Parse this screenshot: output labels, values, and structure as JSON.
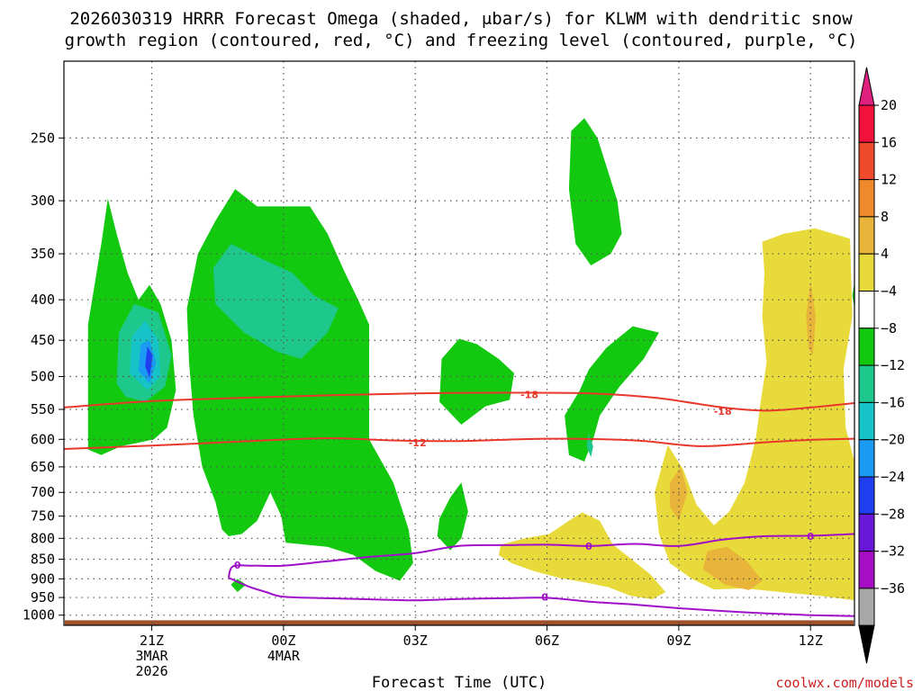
{
  "colors": {
    "red_contour": "#e8382c",
    "purple_contour": "#a010c8",
    "ground": "#a0522d",
    "credit": "#cc1f1f"
  },
  "chart_data": {
    "type": "heatmap",
    "title_line1": "2026030319 HRRR Forecast Omega (shaded, μbar/s) for KLWM with dendritic snow",
    "title_line2": "growth region (contoured, red, °C) and freezing level (contoured, purple, °C)",
    "xlabel": "Forecast Time (UTC)",
    "ylabel": "",
    "y_scale": "log-pressure (hPa), decreasing upward",
    "y_ticks": [
      250,
      300,
      350,
      400,
      450,
      500,
      550,
      600,
      650,
      700,
      750,
      800,
      850,
      900,
      950,
      1000
    ],
    "x_ticks": [
      {
        "hour": 21,
        "line1": "21Z",
        "line2": "3MAR",
        "line3": "2026"
      },
      {
        "hour": 24,
        "line1": "00Z",
        "line2": "4MAR",
        "line3": ""
      },
      {
        "hour": 27,
        "line1": "03Z",
        "line2": "",
        "line3": ""
      },
      {
        "hour": 30,
        "line1": "06Z",
        "line2": "",
        "line3": ""
      },
      {
        "hour": 33,
        "line1": "09Z",
        "line2": "",
        "line3": ""
      },
      {
        "hour": 36,
        "line1": "12Z",
        "line2": "",
        "line3": ""
      }
    ],
    "x_range_hours": [
      19,
      37
    ],
    "y_range_hpa": [
      200,
      1030
    ],
    "grid": true,
    "colorbar": {
      "labels": [
        "20",
        "16",
        "12",
        "8",
        "4",
        "−4",
        "−8",
        "−12",
        "−16",
        "−20",
        "−24",
        "−28",
        "−32",
        "−36"
      ],
      "colors": [
        "#f0123c",
        "#f04a2c",
        "#ee8a2c",
        "#e9b43a",
        "#e8da3a",
        "#ffffff",
        "#12c90f",
        "#1ec88c",
        "#16c4c8",
        "#1a9af2",
        "#1e3ef0",
        "#6a18d8",
        "#a60ec4",
        "#a8a8a8"
      ],
      "top_arrow_color": "#e0207e",
      "bottom_arrow_color": "#000000"
    },
    "omega_regions": [
      {
        "level": "-4",
        "color": "#12c90f",
        "points": [
          [
            19.55,
            618
          ],
          [
            19.55,
            430
          ],
          [
            19.85,
            340
          ],
          [
            20.0,
            298
          ],
          [
            20.2,
            330
          ],
          [
            20.45,
            370
          ],
          [
            20.7,
            400
          ],
          [
            20.95,
            383
          ],
          [
            21.2,
            405
          ],
          [
            21.45,
            450
          ],
          [
            21.55,
            520
          ],
          [
            21.35,
            580
          ],
          [
            21.05,
            600
          ],
          [
            20.75,
            605
          ],
          [
            20.3,
            612
          ],
          [
            19.85,
            628
          ]
        ]
      },
      {
        "level": "-4",
        "color": "#12c90f",
        "points": [
          [
            21.95,
            560
          ],
          [
            21.85,
            480
          ],
          [
            21.8,
            410
          ],
          [
            22.05,
            350
          ],
          [
            22.45,
            318
          ],
          [
            22.9,
            290
          ],
          [
            23.4,
            305
          ],
          [
            24.6,
            305
          ],
          [
            25.0,
            330
          ],
          [
            25.4,
            370
          ],
          [
            25.7,
            400
          ],
          [
            25.95,
            430
          ],
          [
            25.95,
            600
          ],
          [
            26.5,
            680
          ],
          [
            26.85,
            780
          ],
          [
            26.95,
            860
          ],
          [
            26.65,
            905
          ],
          [
            26.1,
            880
          ],
          [
            25.6,
            840
          ],
          [
            25.0,
            820
          ],
          [
            24.5,
            815
          ],
          [
            24.05,
            810
          ],
          [
            23.95,
            750
          ],
          [
            23.7,
            700
          ],
          [
            23.4,
            760
          ],
          [
            23.05,
            790
          ],
          [
            22.75,
            795
          ],
          [
            22.6,
            780
          ],
          [
            22.45,
            720
          ],
          [
            22.15,
            650
          ]
        ]
      },
      {
        "level": "-4",
        "color": "#12c90f",
        "points": [
          [
            27.55,
            538
          ],
          [
            27.6,
            475
          ],
          [
            28.0,
            448
          ],
          [
            28.4,
            455
          ],
          [
            28.9,
            475
          ],
          [
            29.25,
            495
          ],
          [
            29.15,
            535
          ],
          [
            28.6,
            545
          ],
          [
            28.05,
            575
          ]
        ]
      },
      {
        "level": "-4",
        "color": "#12c90f",
        "points": [
          [
            27.5,
            795
          ],
          [
            27.55,
            755
          ],
          [
            27.8,
            710
          ],
          [
            28.05,
            680
          ],
          [
            28.2,
            740
          ],
          [
            28.05,
            800
          ],
          [
            27.8,
            828
          ]
        ]
      },
      {
        "level": "-4",
        "color": "#12c90f",
        "points": [
          [
            30.5,
            290
          ],
          [
            30.55,
            245
          ],
          [
            30.85,
            236
          ],
          [
            31.15,
            250
          ],
          [
            31.6,
            300
          ],
          [
            31.7,
            330
          ],
          [
            31.45,
            350
          ],
          [
            31.0,
            362
          ],
          [
            30.65,
            340
          ]
        ]
      },
      {
        "level": "-4",
        "color": "#12c90f",
        "points": [
          [
            30.5,
            628
          ],
          [
            30.4,
            560
          ],
          [
            30.75,
            520
          ],
          [
            30.95,
            490
          ],
          [
            31.35,
            460
          ],
          [
            31.95,
            432
          ],
          [
            32.55,
            440
          ],
          [
            32.2,
            475
          ],
          [
            31.65,
            515
          ],
          [
            31.2,
            560
          ],
          [
            31.05,
            600
          ],
          [
            30.85,
            640
          ]
        ]
      },
      {
        "level": "-4",
        "color": "#12c90f",
        "points": [
          [
            22.8,
            915
          ],
          [
            22.95,
            900
          ],
          [
            23.15,
            915
          ],
          [
            22.95,
            935
          ]
        ]
      },
      {
        "level": "-8",
        "color": "#1ec88c",
        "points": [
          [
            22.4,
            365
          ],
          [
            22.8,
            340
          ],
          [
            23.5,
            355
          ],
          [
            24.2,
            370
          ],
          [
            24.7,
            395
          ],
          [
            25.25,
            410
          ],
          [
            25.0,
            440
          ],
          [
            24.4,
            475
          ],
          [
            23.85,
            465
          ],
          [
            23.1,
            440
          ],
          [
            22.45,
            405
          ]
        ]
      },
      {
        "level": "-8",
        "color": "#1ec88c",
        "points": [
          [
            20.2,
            510
          ],
          [
            20.25,
            440
          ],
          [
            20.6,
            405
          ],
          [
            21.15,
            415
          ],
          [
            21.45,
            470
          ],
          [
            21.3,
            515
          ],
          [
            20.85,
            538
          ],
          [
            20.4,
            530
          ]
        ]
      },
      {
        "level": "-8",
        "color": "#1ec88c",
        "points": [
          [
            30.9,
            612
          ],
          [
            30.95,
            590
          ],
          [
            31.05,
            612
          ],
          [
            31.0,
            632
          ]
        ]
      },
      {
        "level": "-12",
        "color": "#16c4c8",
        "points": [
          [
            20.5,
            495
          ],
          [
            20.55,
            445
          ],
          [
            20.85,
            425
          ],
          [
            21.15,
            450
          ],
          [
            21.2,
            500
          ],
          [
            20.9,
            520
          ]
        ]
      },
      {
        "level": "-16",
        "color": "#1a9af2",
        "points": [
          [
            20.7,
            492
          ],
          [
            20.75,
            455
          ],
          [
            20.95,
            450
          ],
          [
            21.1,
            480
          ],
          [
            20.95,
            510
          ]
        ]
      },
      {
        "level": "-20",
        "color": "#1e3ef0",
        "points": [
          [
            20.85,
            485
          ],
          [
            20.9,
            458
          ],
          [
            21.02,
            470
          ],
          [
            20.95,
            502
          ]
        ]
      },
      {
        "level": "4",
        "color": "#e8da3a",
        "points": [
          [
            35.0,
            480
          ],
          [
            34.9,
            420
          ],
          [
            34.95,
            370
          ],
          [
            34.9,
            338
          ],
          [
            35.4,
            330
          ],
          [
            36.1,
            325
          ],
          [
            36.9,
            335
          ],
          [
            36.95,
            420
          ],
          [
            36.75,
            490
          ],
          [
            36.8,
            580
          ],
          [
            37.0,
            640
          ],
          [
            37.0,
            958
          ],
          [
            36.2,
            945
          ],
          [
            35.3,
            935
          ],
          [
            34.5,
            925
          ],
          [
            33.8,
            928
          ],
          [
            33.3,
            900
          ],
          [
            32.8,
            860
          ],
          [
            32.55,
            790
          ],
          [
            32.45,
            700
          ],
          [
            32.75,
            610
          ],
          [
            33.1,
            655
          ],
          [
            33.4,
            725
          ],
          [
            33.8,
            770
          ],
          [
            34.15,
            740
          ],
          [
            34.5,
            680
          ],
          [
            34.75,
            600
          ],
          [
            34.85,
            545
          ]
        ]
      },
      {
        "level": "4",
        "color": "#e8da3a",
        "points": [
          [
            28.9,
            840
          ],
          [
            28.95,
            815
          ],
          [
            29.5,
            800
          ],
          [
            30.05,
            790
          ],
          [
            30.5,
            760
          ],
          [
            30.8,
            742
          ],
          [
            31.2,
            760
          ],
          [
            31.5,
            815
          ],
          [
            31.9,
            848
          ],
          [
            32.35,
            888
          ],
          [
            32.7,
            935
          ],
          [
            32.4,
            955
          ],
          [
            31.9,
            945
          ],
          [
            31.4,
            922
          ],
          [
            30.9,
            910
          ],
          [
            30.3,
            898
          ],
          [
            29.7,
            880
          ],
          [
            29.2,
            860
          ]
        ]
      },
      {
        "level": "8",
        "color": "#e9b43a",
        "points": [
          [
            33.55,
            875
          ],
          [
            33.65,
            830
          ],
          [
            34.1,
            820
          ],
          [
            34.55,
            855
          ],
          [
            34.9,
            905
          ],
          [
            34.6,
            930
          ],
          [
            34.05,
            915
          ]
        ]
      },
      {
        "level": "8",
        "color": "#e9b43a",
        "points": [
          [
            32.8,
            730
          ],
          [
            32.8,
            680
          ],
          [
            33.05,
            650
          ],
          [
            33.2,
            700
          ],
          [
            33.0,
            760
          ]
        ]
      },
      {
        "level": "8",
        "color": "#e9b43a",
        "points": [
          [
            35.95,
            460
          ],
          [
            35.9,
            420
          ],
          [
            36.0,
            380
          ],
          [
            36.12,
            420
          ],
          [
            36.05,
            470
          ]
        ]
      },
      {
        "level": "-4",
        "color": "#12c90f",
        "points": [
          [
            36.95,
            395
          ],
          [
            37.0,
            380
          ],
          [
            37.0,
            410
          ]
        ]
      }
    ],
    "contours": [
      {
        "name": "-18",
        "color": "#e8382c",
        "label": "-18",
        "label_at": [
          [
            29.6,
            527
          ],
          [
            34.0,
            553
          ]
        ],
        "points": [
          [
            19.0,
            547
          ],
          [
            21.0,
            537
          ],
          [
            23.0,
            532
          ],
          [
            25.0,
            528
          ],
          [
            27.0,
            525
          ],
          [
            29.0,
            524
          ],
          [
            31.0,
            525
          ],
          [
            32.5,
            532
          ],
          [
            34.0,
            547
          ],
          [
            35.0,
            552
          ],
          [
            36.0,
            547
          ],
          [
            37.0,
            540
          ]
        ]
      },
      {
        "name": "-12",
        "color": "#e8382c",
        "label": "-12",
        "label_at": [
          [
            27.05,
            606
          ]
        ],
        "points": [
          [
            19.0,
            617
          ],
          [
            21.0,
            611
          ],
          [
            23.0,
            604
          ],
          [
            25.0,
            598
          ],
          [
            26.5,
            602
          ],
          [
            28.0,
            603
          ],
          [
            30.0,
            599
          ],
          [
            32.0,
            602
          ],
          [
            33.5,
            612
          ],
          [
            35.0,
            605
          ],
          [
            36.0,
            601
          ],
          [
            37.0,
            599
          ]
        ]
      },
      {
        "name": "0a",
        "color": "#a010c8",
        "label": "0",
        "label_at": [
          [
            22.95,
            865
          ],
          [
            30.95,
            818
          ],
          [
            36.0,
            795
          ]
        ],
        "points": [
          [
            22.75,
            897
          ],
          [
            22.85,
            868
          ],
          [
            23.3,
            866
          ],
          [
            24.0,
            866
          ],
          [
            25.0,
            855
          ],
          [
            26.0,
            844
          ],
          [
            27.0,
            835
          ],
          [
            28.0,
            818
          ],
          [
            29.0,
            816
          ],
          [
            30.0,
            815
          ],
          [
            31.0,
            818
          ],
          [
            32.0,
            813
          ],
          [
            33.0,
            818
          ],
          [
            34.0,
            803
          ],
          [
            35.0,
            795
          ],
          [
            36.0,
            794
          ],
          [
            37.0,
            790
          ]
        ]
      },
      {
        "name": "0b",
        "color": "#a010c8",
        "label": "0",
        "label_at": [
          [
            29.95,
            948
          ]
        ],
        "points": [
          [
            22.75,
            897
          ],
          [
            23.2,
            920
          ],
          [
            23.6,
            935
          ],
          [
            24.0,
            948
          ],
          [
            25.0,
            952
          ],
          [
            26.0,
            955
          ],
          [
            27.0,
            958
          ],
          [
            28.0,
            954
          ],
          [
            29.0,
            952
          ],
          [
            30.0,
            951
          ],
          [
            31.0,
            962
          ],
          [
            32.0,
            970
          ],
          [
            33.0,
            980
          ],
          [
            34.0,
            988
          ],
          [
            35.0,
            995
          ],
          [
            36.0,
            1000
          ],
          [
            37.0,
            1003
          ]
        ]
      }
    ],
    "ground_top_hpa": 1015,
    "credit": "coolwx.com/models"
  }
}
